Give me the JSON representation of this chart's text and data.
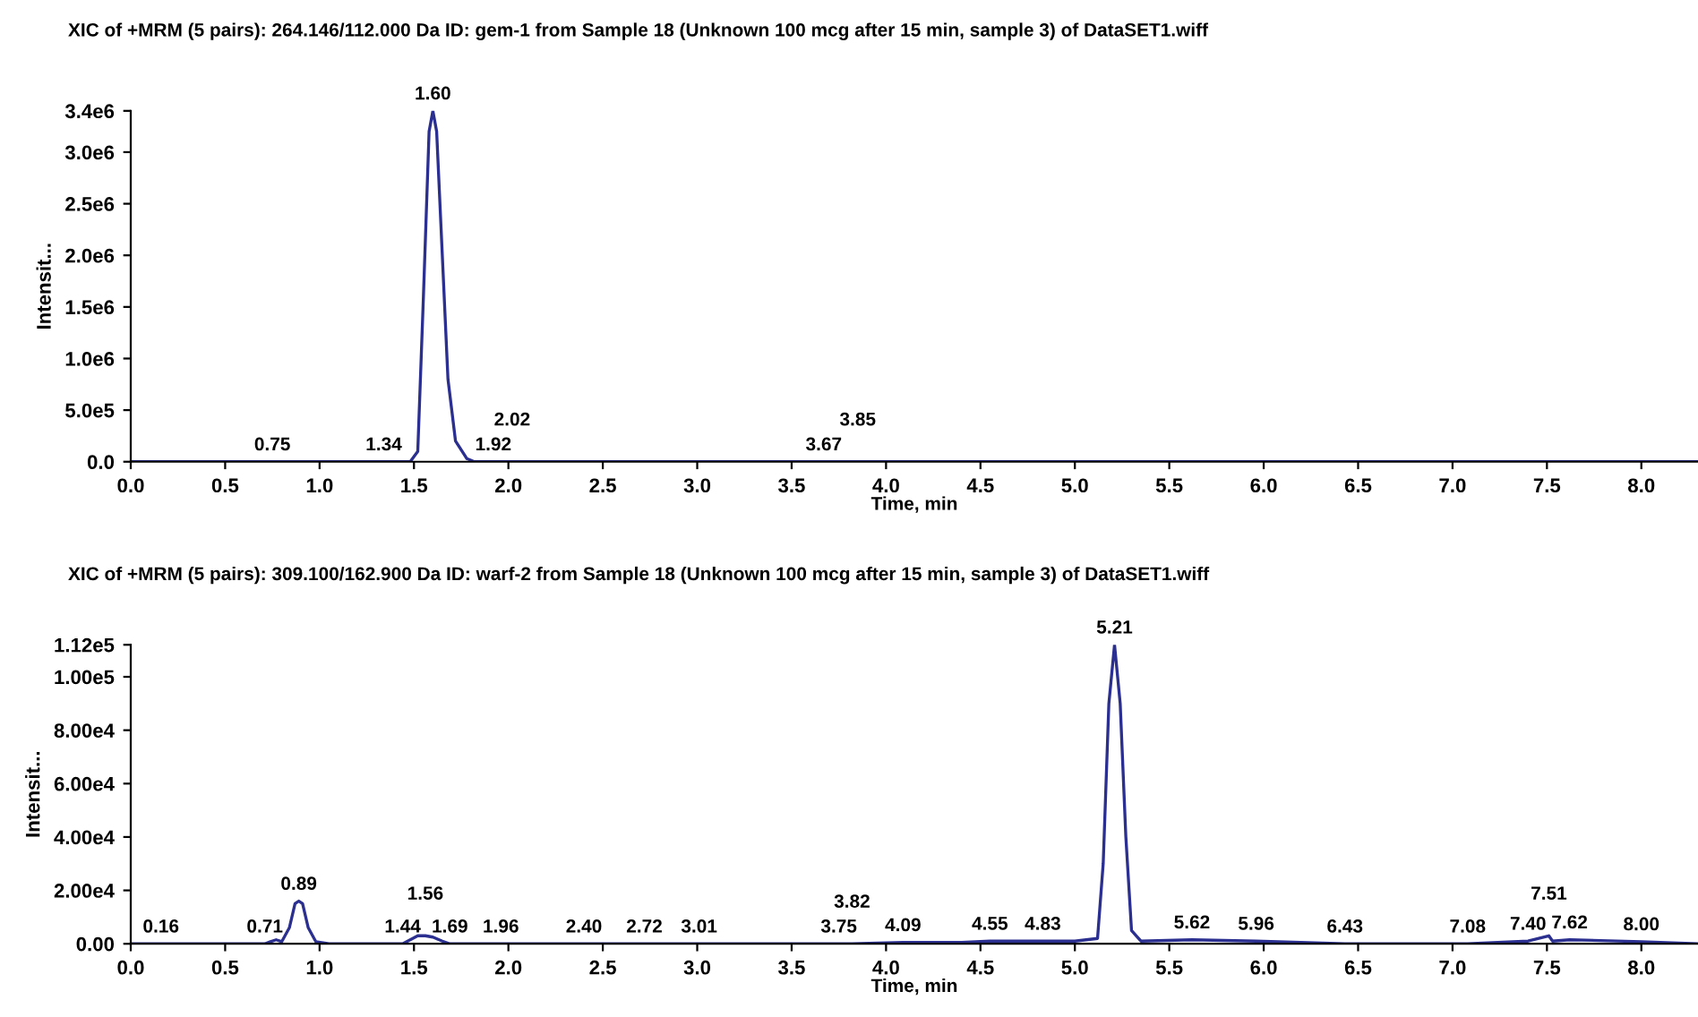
{
  "chart_data": [
    {
      "type": "line",
      "title": "XIC of +MRM (5 pairs): 264.146/112.000 Da ID: gem-1 from Sample 18 (Unknown 100 mcg after 15 min, sample 3) of DataSET1.wiff",
      "xlabel": "Time, min",
      "ylabel": "Intensit...",
      "x": [
        0.0,
        0.75,
        1.34,
        1.48,
        1.52,
        1.55,
        1.58,
        1.6,
        1.62,
        1.65,
        1.68,
        1.72,
        1.78,
        1.82,
        1.92,
        2.02,
        3.67,
        3.85,
        8.3
      ],
      "series": [
        {
          "color": "#2b2f8f",
          "values": [
            0,
            0,
            0,
            0,
            100000,
            1600000,
            3200000,
            3400000,
            3200000,
            2000000,
            800000,
            200000,
            30000,
            0,
            0,
            0,
            0,
            0,
            0
          ]
        }
      ],
      "xlim": [
        0,
        8.3
      ],
      "xticks": [
        {
          "value": 0,
          "label": "0.0"
        },
        {
          "value": 0.5,
          "label": "0.5"
        },
        {
          "value": 1,
          "label": "1.0"
        },
        {
          "value": 1.5,
          "label": "1.5"
        },
        {
          "value": 2,
          "label": "2.0"
        },
        {
          "value": 2.5,
          "label": "2.5"
        },
        {
          "value": 3,
          "label": "3.0"
        },
        {
          "value": 3.5,
          "label": "3.5"
        },
        {
          "value": 4,
          "label": "4.0"
        },
        {
          "value": 4.5,
          "label": "4.5"
        },
        {
          "value": 5,
          "label": "5.0"
        },
        {
          "value": 5.5,
          "label": "5.5"
        },
        {
          "value": 6,
          "label": "6.0"
        },
        {
          "value": 6.5,
          "label": "6.5"
        },
        {
          "value": 7,
          "label": "7.0"
        },
        {
          "value": 7.5,
          "label": "7.5"
        },
        {
          "value": 8,
          "label": "8.0"
        }
      ],
      "ylim": [
        0,
        3400000
      ],
      "yticks": [
        {
          "value": 0,
          "label": "0.0"
        },
        {
          "value": 500000,
          "label": "5.0e5"
        },
        {
          "value": 1000000,
          "label": "1.0e6"
        },
        {
          "value": 1500000,
          "label": "1.5e6"
        },
        {
          "value": 2000000,
          "label": "2.0e6"
        },
        {
          "value": 2500000,
          "label": "2.5e6"
        },
        {
          "value": 3000000,
          "label": "3.0e6"
        },
        {
          "value": 3400000,
          "label": "3.4e6"
        }
      ],
      "grid": false,
      "marker": "none",
      "line_style": "solid",
      "annotations": [
        {
          "text": "1.60",
          "x": 1.6,
          "y": 3400000
        },
        {
          "text": "0.75",
          "x": 0.75,
          "y": 0
        },
        {
          "text": "1.34",
          "x": 1.34,
          "y": 0
        },
        {
          "text": "1.92",
          "x": 1.92,
          "y": 0
        },
        {
          "text": "2.02",
          "x": 2.02,
          "y": 0
        },
        {
          "text": "3.67",
          "x": 3.67,
          "y": 0
        },
        {
          "text": "3.85",
          "x": 3.85,
          "y": 0
        }
      ]
    },
    {
      "type": "line",
      "title": "XIC of +MRM (5 pairs): 309.100/162.900 Da ID: warf-2 from Sample 18 (Unknown 100 mcg after 15 min, sample 3) of DataSET1.wiff",
      "xlabel": "Time, min",
      "ylabel": "Intensit...",
      "x": [
        0.0,
        0.16,
        0.71,
        0.74,
        0.77,
        0.8,
        0.84,
        0.87,
        0.89,
        0.91,
        0.94,
        0.98,
        1.05,
        1.44,
        1.48,
        1.52,
        1.56,
        1.6,
        1.65,
        1.69,
        1.96,
        2.4,
        2.72,
        3.01,
        3.75,
        3.82,
        4.09,
        4.4,
        4.55,
        4.83,
        5.0,
        5.12,
        5.15,
        5.18,
        5.21,
        5.24,
        5.27,
        5.3,
        5.35,
        5.62,
        5.96,
        6.43,
        7.08,
        7.4,
        7.51,
        7.53,
        7.62,
        8.0,
        8.3
      ],
      "series": [
        {
          "color": "#2b2f8f",
          "values": [
            0,
            0,
            0,
            800,
            1500,
            800,
            6000,
            15000,
            16000,
            15000,
            6000,
            800,
            0,
            0,
            1500,
            3000,
            3000,
            2500,
            1000,
            0,
            0,
            0,
            0,
            0,
            0,
            0,
            500,
            500,
            1000,
            1000,
            1000,
            2000,
            30000,
            90000,
            112000,
            90000,
            40000,
            5000,
            1000,
            1500,
            1000,
            0,
            0,
            1000,
            3000,
            1000,
            1500,
            800,
            0
          ]
        }
      ],
      "xlim": [
        0,
        8.3
      ],
      "xticks": [
        {
          "value": 0,
          "label": "0.0"
        },
        {
          "value": 0.5,
          "label": "0.5"
        },
        {
          "value": 1,
          "label": "1.0"
        },
        {
          "value": 1.5,
          "label": "1.5"
        },
        {
          "value": 2,
          "label": "2.0"
        },
        {
          "value": 2.5,
          "label": "2.5"
        },
        {
          "value": 3,
          "label": "3.0"
        },
        {
          "value": 3.5,
          "label": "3.5"
        },
        {
          "value": 4,
          "label": "4.0"
        },
        {
          "value": 4.5,
          "label": "4.5"
        },
        {
          "value": 5,
          "label": "5.0"
        },
        {
          "value": 5.5,
          "label": "5.5"
        },
        {
          "value": 6,
          "label": "6.0"
        },
        {
          "value": 6.5,
          "label": "6.5"
        },
        {
          "value": 7,
          "label": "7.0"
        },
        {
          "value": 7.5,
          "label": "7.5"
        },
        {
          "value": 8,
          "label": "8.0"
        }
      ],
      "ylim": [
        0,
        112000
      ],
      "yticks": [
        {
          "value": 0,
          "label": "0.00"
        },
        {
          "value": 20000,
          "label": "2.00e4"
        },
        {
          "value": 40000,
          "label": "4.00e4"
        },
        {
          "value": 60000,
          "label": "6.00e4"
        },
        {
          "value": 80000,
          "label": "8.00e4"
        },
        {
          "value": 100000,
          "label": "1.00e5"
        },
        {
          "value": 112000,
          "label": "1.12e5"
        }
      ],
      "grid": false,
      "marker": "none",
      "line_style": "solid",
      "annotations": [
        {
          "text": "5.21",
          "x": 5.21,
          "y": 112000
        },
        {
          "text": "0.89",
          "x": 0.89,
          "y": 16000
        },
        {
          "text": "0.16",
          "x": 0.16,
          "y": 0
        },
        {
          "text": "0.71",
          "x": 0.71,
          "y": 0
        },
        {
          "text": "1.44",
          "x": 1.44,
          "y": 0
        },
        {
          "text": "1.56",
          "x": 1.56,
          "y": 3000
        },
        {
          "text": "1.69",
          "x": 1.69,
          "y": 0
        },
        {
          "text": "1.96",
          "x": 1.96,
          "y": 0
        },
        {
          "text": "2.40",
          "x": 2.4,
          "y": 0
        },
        {
          "text": "2.72",
          "x": 2.72,
          "y": 0
        },
        {
          "text": "3.01",
          "x": 3.01,
          "y": 0
        },
        {
          "text": "3.75",
          "x": 3.75,
          "y": 0
        },
        {
          "text": "3.82",
          "x": 3.82,
          "y": 0
        },
        {
          "text": "4.09",
          "x": 4.09,
          "y": 500
        },
        {
          "text": "4.55",
          "x": 4.55,
          "y": 1000
        },
        {
          "text": "4.83",
          "x": 4.83,
          "y": 1000
        },
        {
          "text": "5.62",
          "x": 5.62,
          "y": 1500
        },
        {
          "text": "5.96",
          "x": 5.96,
          "y": 1000
        },
        {
          "text": "6.43",
          "x": 6.43,
          "y": 0
        },
        {
          "text": "7.08",
          "x": 7.08,
          "y": 0
        },
        {
          "text": "7.40",
          "x": 7.4,
          "y": 1000
        },
        {
          "text": "7.51",
          "x": 7.51,
          "y": 3000
        },
        {
          "text": "7.62",
          "x": 7.62,
          "y": 1500
        },
        {
          "text": "8.00",
          "x": 8.0,
          "y": 800
        }
      ]
    }
  ]
}
